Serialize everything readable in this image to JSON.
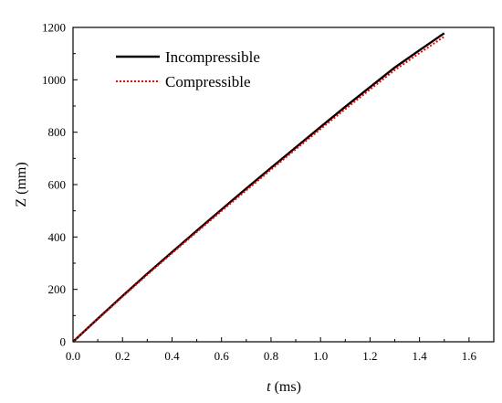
{
  "chart_data": {
    "type": "line",
    "xlabel_var": "t",
    "xlabel_unit": " (ms)",
    "ylabel": "Z (mm)",
    "xlim": [
      0,
      1.7
    ],
    "ylim": [
      0,
      1200
    ],
    "xticks": [
      "0.0",
      "0.2",
      "0.4",
      "0.6",
      "0.8",
      "1.0",
      "1.2",
      "1.4",
      "1.6"
    ],
    "yticks": [
      "0",
      "200",
      "400",
      "600",
      "800",
      "1000",
      "1200"
    ],
    "grid": false,
    "legend_position": "top-left",
    "series": [
      {
        "name": "Incompressible",
        "color": "#000000",
        "style": "solid",
        "x": [
          0,
          0.1,
          0.2,
          0.3,
          0.4,
          0.5,
          0.6,
          0.7,
          0.8,
          0.9,
          1.0,
          1.1,
          1.2,
          1.3,
          1.4,
          1.5
        ],
        "y": [
          0,
          88,
          175,
          260,
          342,
          424,
          505,
          585,
          664,
          742,
          820,
          897,
          972,
          1047,
          1113,
          1178
        ]
      },
      {
        "name": "Compressible",
        "color": "#ff0000",
        "style": "dotted",
        "x": [
          0,
          0.1,
          0.2,
          0.3,
          0.4,
          0.5,
          0.6,
          0.7,
          0.8,
          0.9,
          1.0,
          1.1,
          1.2,
          1.3,
          1.4,
          1.5
        ],
        "y": [
          0,
          86,
          172,
          256,
          338,
          419,
          499,
          578,
          657,
          735,
          812,
          888,
          963,
          1037,
          1102,
          1165
        ]
      }
    ]
  }
}
